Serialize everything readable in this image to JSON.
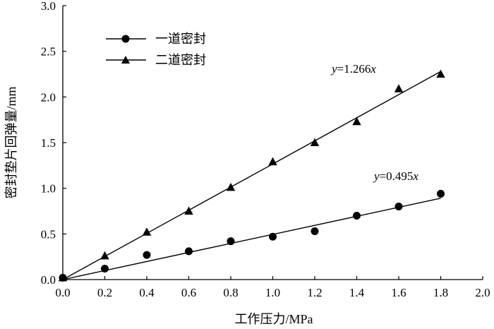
{
  "chart_data": {
    "type": "scatter",
    "xlabel": "工作压力/MPa",
    "ylabel": "密封垫片回弹量/mm",
    "xlim": [
      0,
      2.0
    ],
    "ylim": [
      0,
      3.0
    ],
    "xticks": [
      "0.0",
      "0.2",
      "0.4",
      "0.6",
      "0.8",
      "1.0",
      "1.2",
      "1.4",
      "1.6",
      "1.8",
      "2.0"
    ],
    "yticks": [
      "0.0",
      "0.5",
      "1.0",
      "1.5",
      "2.0",
      "2.5",
      "3.0"
    ],
    "grid": false,
    "legend_position": "top-left",
    "series": [
      {
        "name": "一道密封",
        "marker": "circle",
        "x": [
          0,
          0.2,
          0.4,
          0.6,
          0.8,
          1.0,
          1.2,
          1.4,
          1.6,
          1.8
        ],
        "y": [
          0.02,
          0.12,
          0.27,
          0.31,
          0.42,
          0.47,
          0.53,
          0.7,
          0.8,
          0.94
        ],
        "fit_slope": 0.495,
        "fit_label_y": "y",
        "fit_label_eq": "=0.495",
        "fit_label_x": "x"
      },
      {
        "name": "二道密封",
        "marker": "triangle",
        "x": [
          0,
          0.2,
          0.4,
          0.6,
          0.8,
          1.0,
          1.2,
          1.4,
          1.6,
          1.8
        ],
        "y": [
          0.02,
          0.26,
          0.52,
          0.75,
          1.01,
          1.29,
          1.5,
          1.73,
          2.09,
          2.25
        ],
        "fit_slope": 1.266,
        "fit_label_y": "y",
        "fit_label_eq": "=1.266",
        "fit_label_x": "x"
      }
    ]
  }
}
